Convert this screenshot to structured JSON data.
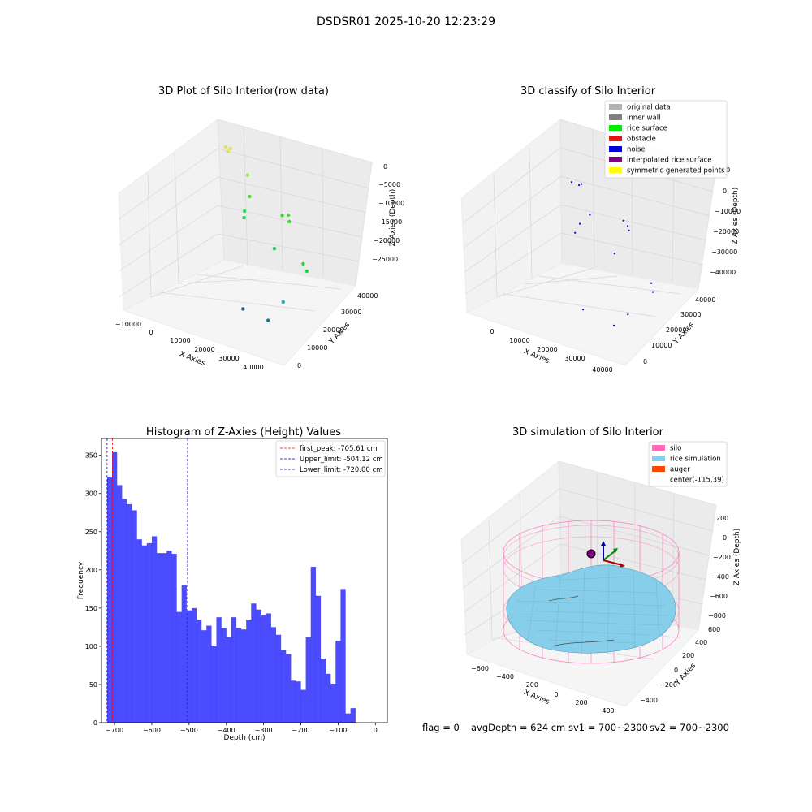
{
  "figure": {
    "suptitle": "DSDSR01 2025-10-20 12:23:29",
    "footer": {
      "flag": "flag = 0",
      "avg_depth": "avgDepth = 624 cm",
      "sv1": "sv1 = 700~2300",
      "sv2": "sv2 = 700~2300"
    }
  },
  "panel1": {
    "title": "3D Plot of Silo Interior(row data)",
    "xlabel": "X Axies",
    "ylabel": "Y Axies",
    "zlabel": "Z Axies (Depth)",
    "x_ticks": [
      "−10000",
      "0",
      "10000",
      "20000",
      "30000",
      "40000"
    ],
    "y_ticks": [
      "0",
      "10000",
      "20000",
      "30000",
      "40000"
    ],
    "z_ticks": [
      "0",
      "−5000",
      "−10000",
      "−15000",
      "−20000",
      "−25000"
    ]
  },
  "panel2": {
    "title": "3D classify of Silo Interior",
    "xlabel": "X Axies",
    "ylabel": "Y Axies",
    "zlabel": "Z Axies (Depth)",
    "x_ticks": [
      "0",
      "10000",
      "20000",
      "30000",
      "40000"
    ],
    "y_ticks": [
      "0",
      "10000",
      "20000",
      "30000",
      "40000"
    ],
    "z_ticks": [
      "000",
      "0",
      "−10000",
      "−20000",
      "−30000",
      "−40000"
    ],
    "legend": [
      {
        "label": "original data",
        "color": "#b3b3b3"
      },
      {
        "label": "inner wall",
        "color": "#808080"
      },
      {
        "label": "rice surface",
        "color": "#00ee00"
      },
      {
        "label": "obstacle",
        "color": "#ee1111"
      },
      {
        "label": "noise",
        "color": "#0000dd"
      },
      {
        "label": "interpolated rice surface",
        "color": "#800080"
      },
      {
        "label": "symmetric generated points",
        "color": "#ffff00"
      }
    ]
  },
  "panel4": {
    "title": "3D simulation of Silo Interior",
    "xlabel": "X Axies",
    "ylabel": "Y Axies",
    "zlabel": "Z Axies (Depth)",
    "x_ticks": [
      "−600",
      "−400",
      "−200",
      "0",
      "200",
      "400"
    ],
    "y_ticks": [
      "−400",
      "−200",
      "0",
      "200",
      "400",
      "600"
    ],
    "z_ticks": [
      "200",
      "0",
      "−200",
      "−400",
      "−600",
      "−800"
    ],
    "legend": [
      {
        "label": "silo",
        "color": "#ff69b4"
      },
      {
        "label": "rice simulation",
        "color": "#87ceeb"
      },
      {
        "label": "auger",
        "color": "#ff4500"
      },
      {
        "label": "center(-115,39)",
        "color": ""
      }
    ]
  },
  "chart_data": [
    {
      "type": "scatter",
      "title": "3D Plot of Silo Interior(row data)",
      "xlabel": "X Axies",
      "ylabel": "Y Axies",
      "zlabel": "Z Axies (Depth)",
      "xlim": [
        -12000,
        45000
      ],
      "ylim": [
        -2000,
        45000
      ],
      "zlim": [
        -28000,
        500
      ],
      "points": [
        {
          "x": -9000,
          "y": 44000,
          "z": -1000
        },
        {
          "x": -7500,
          "y": 43000,
          "z": -1500
        },
        {
          "x": -7000,
          "y": 43500,
          "z": -800
        },
        {
          "x": 0,
          "y": 42000,
          "z": -5000
        },
        {
          "x": 2000,
          "y": 40000,
          "z": -9000
        },
        {
          "x": 1500,
          "y": 38000,
          "z": -12000
        },
        {
          "x": 500,
          "y": 39000,
          "z": -14000
        },
        {
          "x": 15000,
          "y": 38000,
          "z": -10000
        },
        {
          "x": 18000,
          "y": 37000,
          "z": -9000
        },
        {
          "x": 19000,
          "y": 36000,
          "z": -10000
        },
        {
          "x": 18000,
          "y": 30000,
          "z": -15000
        },
        {
          "x": 36000,
          "y": 20000,
          "z": -12000
        },
        {
          "x": 38000,
          "y": 19000,
          "z": -13000
        },
        {
          "x": 20000,
          "y": 12000,
          "z": -24000
        },
        {
          "x": 32000,
          "y": 8000,
          "z": -23000
        },
        {
          "x": 33000,
          "y": 14000,
          "z": -20000
        }
      ]
    },
    {
      "type": "scatter",
      "title": "3D classify of Silo Interior",
      "xlabel": "X Axies",
      "ylabel": "Y Axies",
      "zlabel": "Z Axies (Depth)",
      "xlim": [
        -5000,
        45000
      ],
      "ylim": [
        -2000,
        45000
      ],
      "zlim": [
        -42000,
        12000
      ],
      "series": [
        {
          "name": "noise",
          "points": [
            {
              "x": 0,
              "y": 44000,
              "z": -3000
            },
            {
              "x": 3000,
              "y": 43000,
              "z": -2500
            },
            {
              "x": 3500,
              "y": 43500,
              "z": -2000
            },
            {
              "x": 8000,
              "y": 40000,
              "z": -12000
            },
            {
              "x": 6000,
              "y": 38000,
              "z": -16000
            },
            {
              "x": 5000,
              "y": 37000,
              "z": -20000
            },
            {
              "x": 20000,
              "y": 38000,
              "z": -8000
            },
            {
              "x": 22000,
              "y": 37000,
              "z": -9000
            },
            {
              "x": 23000,
              "y": 36000,
              "z": -10000
            },
            {
              "x": 22000,
              "y": 30000,
              "z": -18000
            },
            {
              "x": 40000,
              "y": 20000,
              "z": -18000
            },
            {
              "x": 41000,
              "y": 19000,
              "z": -21000
            },
            {
              "x": 23000,
              "y": 12000,
              "z": -34000
            },
            {
              "x": 34000,
              "y": 10000,
              "z": -35000
            },
            {
              "x": 36000,
              "y": 14000,
              "z": -31000
            }
          ]
        }
      ]
    },
    {
      "type": "bar",
      "title": "Histogram of Z-Axies (Height) Values",
      "xlabel": "Depth (cm)",
      "ylabel": "Frequency",
      "xlim": [
        -735,
        32
      ],
      "ylim": [
        0,
        372
      ],
      "bin_start": -720,
      "bin_width": 13.33,
      "values": [
        321,
        354,
        311,
        293,
        286,
        278,
        240,
        232,
        235,
        244,
        222,
        222,
        225,
        221,
        145,
        180,
        147,
        150,
        135,
        121,
        127,
        100,
        138,
        124,
        112,
        138,
        124,
        122,
        135,
        156,
        148,
        141,
        143,
        125,
        115,
        95,
        90,
        55,
        54,
        43,
        112,
        204,
        166,
        84,
        64,
        51,
        107,
        175,
        12,
        19
      ],
      "x_ticks": [
        -700,
        -600,
        -500,
        -400,
        -300,
        -200,
        -100,
        0
      ],
      "x_tick_labels": [
        "−700",
        "−600",
        "−500",
        "−400",
        "−300",
        "−200",
        "−100",
        "0"
      ],
      "y_ticks": [
        0,
        50,
        100,
        150,
        200,
        250,
        300,
        350
      ],
      "bar_color": "#0000ff",
      "vlines": [
        {
          "label": "first_peak: -705.61 cm",
          "x": -705.61,
          "color": "#ff0000"
        },
        {
          "label": "Upper_limit: -504.12 cm",
          "x": -504.12,
          "color": "#0000cc"
        },
        {
          "label": "Lower_limit: -720.00 cm",
          "x": -720.0,
          "color": "#0000cc"
        }
      ],
      "legend_position": "upper right"
    }
  ]
}
